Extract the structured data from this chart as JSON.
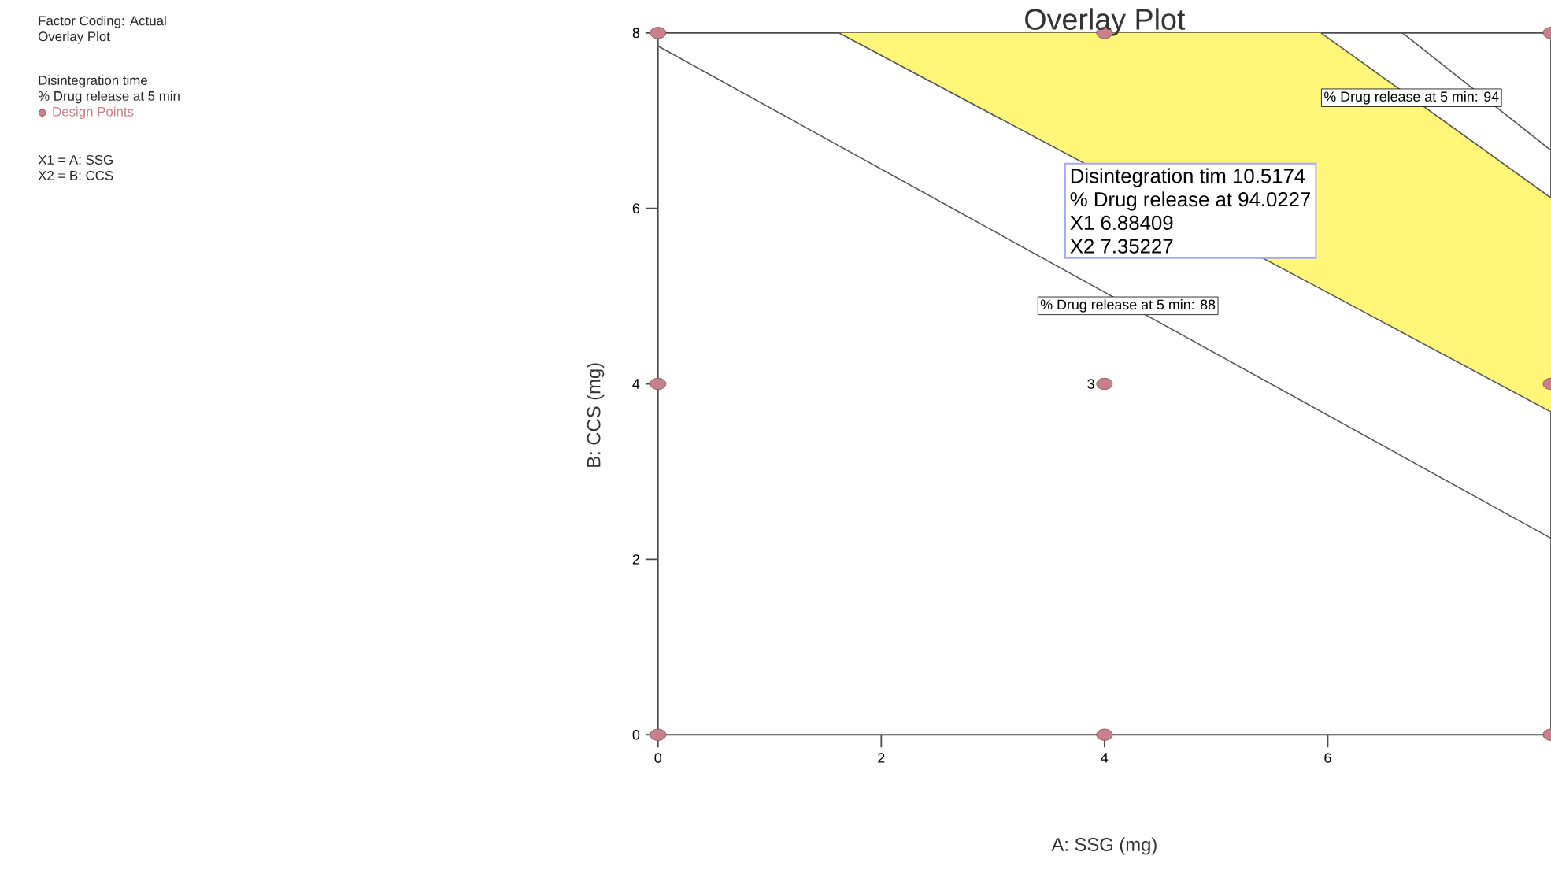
{
  "chart_data": {
    "type": "scatter",
    "title": "Overlay Plot",
    "xlabel": "A: SSG (mg)",
    "ylabel": "B: CCS (mg)",
    "xlim": [
      0,
      8
    ],
    "ylim": [
      0,
      8
    ],
    "xticks": [
      0,
      2,
      4,
      6
    ],
    "yticks": [
      0,
      2,
      4,
      6,
      8
    ],
    "legend": "left",
    "series": [
      {
        "type": "line",
        "color": "#555555",
        "x": [
          1.62,
          5.94,
          8
        ],
        "values": [
          8,
          5.08,
          3.68
        ],
        "lower": [
          8,
          5.08,
          3.68
        ],
        "upper": [
          8,
          8,
          6.12
        ]
      },
      {
        "type": "line",
        "color": "#555555",
        "x": [
          5.94,
          8
        ],
        "values": [
          8,
          6.12
        ]
      },
      {
        "type": "line",
        "color": "#555555",
        "x": [
          0,
          8
        ],
        "values": [
          7.85,
          2.24
        ]
      },
      {
        "type": "line",
        "color": "#555555",
        "x": [
          6.67,
          8
        ],
        "values": [
          8,
          6.66
        ]
      },
      {
        "name": "Design Points",
        "color": "#c8808c",
        "marker": "circle",
        "x": [
          0,
          4,
          8,
          0,
          4,
          8,
          0,
          4,
          8
        ],
        "values": [
          8,
          8,
          8,
          4,
          4,
          4,
          0,
          0,
          0
        ]
      }
    ],
    "annotations": [
      "Factor Coding: Actual",
      "Overlay Plot",
      "Disintegration time",
      "% Drug release at 5 min",
      "X1 = A: SSG",
      "X2 = B: CCS",
      {
        "text": "3",
        "x": 4,
        "y": 4
      },
      {
        "text": "% Drug release at 5 min: 88",
        "x": 4.21,
        "y": 4.89
      },
      {
        "text": "% Drug release at 5 min: 94",
        "x": 6.75,
        "y": 7.26
      },
      "Disintegration tim 10.5174",
      "% Drug release at 94.0227",
      "X1 6.88409",
      "X2 7.35227"
    ]
  }
}
